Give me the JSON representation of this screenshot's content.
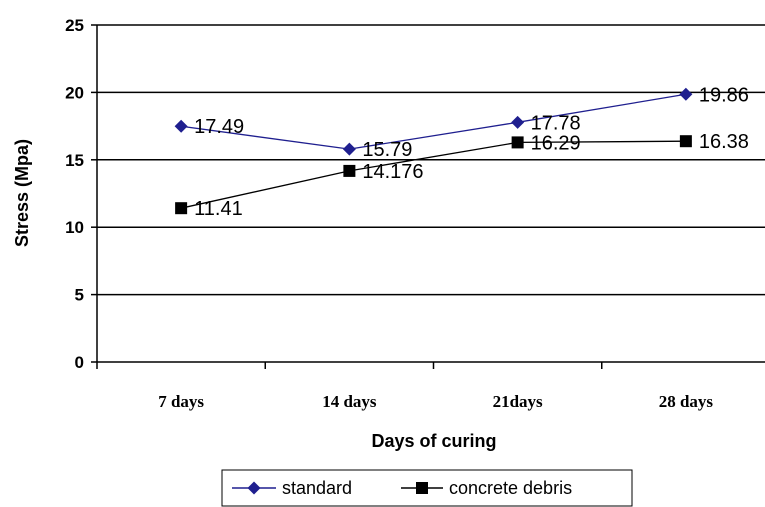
{
  "chart_data": {
    "type": "line",
    "categories": [
      "7 days",
      "14 days",
      "21days",
      "28 days"
    ],
    "series": [
      {
        "name": "standard",
        "values": [
          17.49,
          15.79,
          17.78,
          19.86
        ],
        "labels": [
          "17.49",
          "15.79",
          "17.78",
          "19.86"
        ],
        "color": "#1f1f8f",
        "marker": "diamond"
      },
      {
        "name": "concrete debris",
        "values": [
          11.41,
          14.176,
          16.29,
          16.38
        ],
        "labels": [
          "11.41",
          "14.176",
          "16.29",
          "16.38"
        ],
        "color": "#000000",
        "marker": "square"
      }
    ],
    "xlabel": "Days of curing",
    "ylabel": "Stress (Mpa)",
    "ylim": [
      0,
      25
    ],
    "yticks": [
      "0",
      "5",
      "10",
      "15",
      "20",
      "25"
    ],
    "grid": true,
    "legend": "bottom"
  }
}
